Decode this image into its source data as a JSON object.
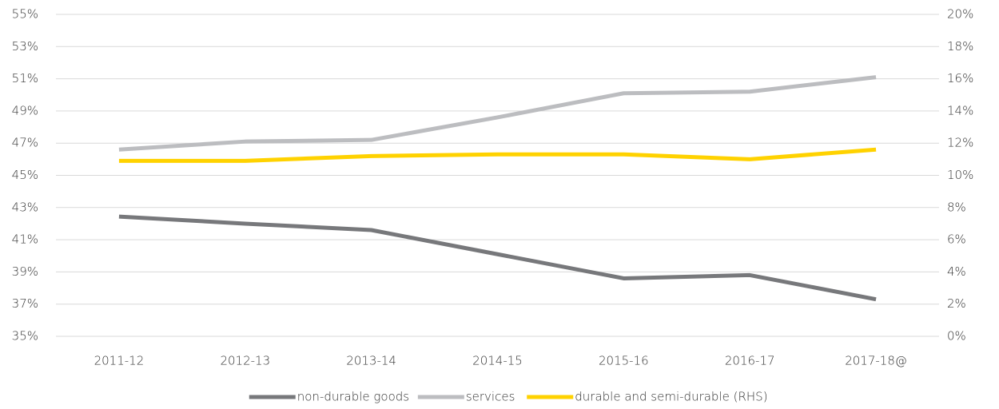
{
  "chart_data": {
    "type": "line",
    "categories": [
      "2011-12",
      "2012-13",
      "2013-14",
      "2014-15",
      "2015-16",
      "2016-17",
      "2017-18@"
    ],
    "series": [
      {
        "name": "non-durable goods",
        "color": "#77787b",
        "values": [
          42.44,
          42.0,
          41.6,
          40.1,
          38.6,
          38.8,
          37.3
        ]
      },
      {
        "name": "services",
        "color": "#bcbdc0",
        "values": [
          46.6,
          47.1,
          47.2,
          48.6,
          50.1,
          50.2,
          51.1
        ]
      },
      {
        "name": "durable and semi-durable (RHS)",
        "color": "#ffd200",
        "axis": "y2",
        "values": [
          10.9,
          10.9,
          11.2,
          11.3,
          11.3,
          11.0,
          11.6
        ]
      }
    ],
    "ylim": [
      35,
      55
    ],
    "yticks": [
      {
        "value": 35,
        "label": "35%"
      },
      {
        "value": 37,
        "label": "37%"
      },
      {
        "value": 39,
        "label": "39%"
      },
      {
        "value": 41,
        "label": "41%"
      },
      {
        "value": 43,
        "label": "43%"
      },
      {
        "value": 45,
        "label": "45%"
      },
      {
        "value": 47,
        "label": "47%"
      },
      {
        "value": 49,
        "label": "49%"
      },
      {
        "value": 51,
        "label": "51%"
      },
      {
        "value": 53,
        "label": "53%"
      },
      {
        "value": 55,
        "label": "55%"
      }
    ],
    "y2lim": [
      0,
      20
    ],
    "y2ticks": [
      {
        "value": 0,
        "label": "0%"
      },
      {
        "value": 2,
        "label": "2%"
      },
      {
        "value": 4,
        "label": "4%"
      },
      {
        "value": 6,
        "label": "6%"
      },
      {
        "value": 8,
        "label": "8%"
      },
      {
        "value": 10,
        "label": "10%"
      },
      {
        "value": 12,
        "label": "12%"
      },
      {
        "value": 14,
        "label": "14%"
      },
      {
        "value": 16,
        "label": "16%"
      },
      {
        "value": 18,
        "label": "18%"
      },
      {
        "value": 20,
        "label": "20%"
      }
    ],
    "grid": true,
    "legend": "bottom"
  }
}
